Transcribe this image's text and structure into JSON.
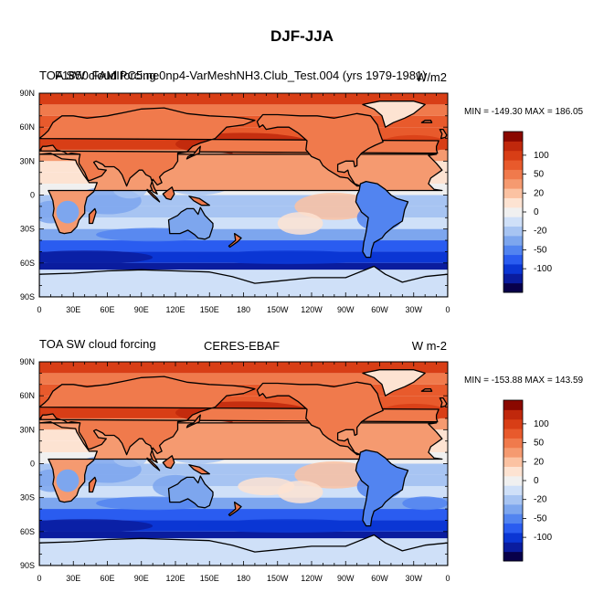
{
  "title": "DJF-JJA",
  "colors": {
    "levels": [
      "#08004a",
      "#0a1c9e",
      "#0b36d4",
      "#2a5cf0",
      "#5284f0",
      "#7da6ee",
      "#a7c4f2",
      "#cfe0f8",
      "#f0f0f0",
      "#fde3d2",
      "#fbc2a2",
      "#f59a70",
      "#f07a4c",
      "#e85a2c",
      "#d83e16",
      "#c0280c",
      "#8a0800"
    ],
    "land_dark": "#c23012",
    "ocean_dark": "#0b2ea8",
    "coast": "#000000"
  },
  "colorbar": {
    "tick_labels": [
      "100",
      "50",
      "20",
      "0",
      "-20",
      "-50",
      "-100"
    ]
  },
  "axes": {
    "x_tick_labels": [
      "0",
      "30E",
      "60E",
      "90E",
      "120E",
      "150E",
      "180",
      "150W",
      "120W",
      "90W",
      "60W",
      "30W",
      "0"
    ],
    "y_tick_labels": [
      "90N",
      "60N",
      "30N",
      "0",
      "30S",
      "60S",
      "90S"
    ]
  },
  "panels": [
    {
      "left": "TOA SW cloud forcing",
      "center": "F1850 FAMIPC5.ne0np4-VarMeshNH3.Club_Test.004 (yrs 1979-1981)",
      "right": "W/m2",
      "minmax": "MIN = -149.30 MAX = 186.05"
    },
    {
      "left": "TOA SW cloud forcing",
      "center": "CERES-EBAF",
      "right": "W m-2",
      "minmax": "MIN = -153.88 MAX = 143.59"
    }
  ],
  "chart_data": [
    {
      "type": "heatmap",
      "title": "DJF-JJA",
      "variable": "TOA SW cloud forcing",
      "dataset": "F1850 FAMIPC5.ne0np4-VarMeshNH3.Club_Test.004 (yrs 1979-1981)",
      "units": "W/m2",
      "min": -149.3,
      "max": 186.05,
      "xlim": [
        0,
        360
      ],
      "ylim": [
        -90,
        90
      ],
      "contour_levels": [
        -100,
        -50,
        -20,
        0,
        20,
        50,
        100
      ],
      "xlabel": "",
      "ylabel": ""
    },
    {
      "type": "heatmap",
      "title": "DJF-JJA",
      "variable": "TOA SW cloud forcing",
      "dataset": "CERES-EBAF",
      "units": "W m-2",
      "min": -153.88,
      "max": 143.59,
      "xlim": [
        0,
        360
      ],
      "ylim": [
        -90,
        90
      ],
      "contour_levels": [
        -100,
        -50,
        -20,
        0,
        20,
        50,
        100
      ],
      "xlabel": "",
      "ylabel": ""
    }
  ]
}
